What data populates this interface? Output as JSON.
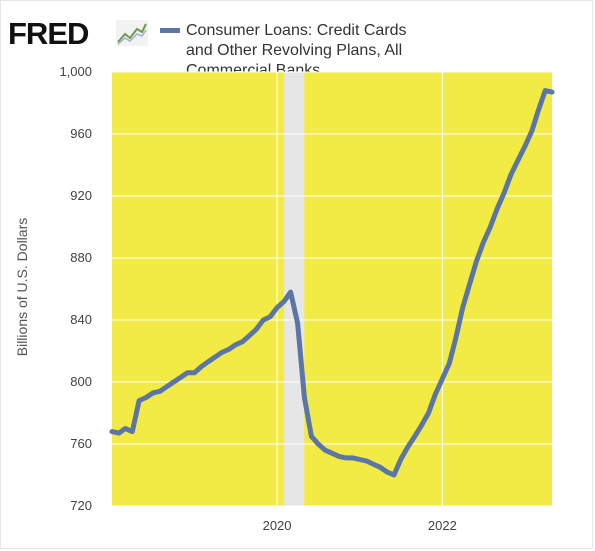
{
  "brand": {
    "logo_text": "FRED",
    "logo_icon": "trend-line-icon"
  },
  "colors": {
    "plot_background": "#f2eb45",
    "line": "#5b76a6",
    "recession_band": "#e6e6e6",
    "grid": "#ffffff"
  },
  "chart_data": {
    "type": "line",
    "title": "",
    "ylabel": "Billions of U.S. Dollars",
    "xlabel": "",
    "ylim": [
      720,
      1000
    ],
    "xlim": [
      "2018-01-01",
      "2023-05-01"
    ],
    "y_ticks": [
      720,
      760,
      800,
      840,
      880,
      920,
      960,
      1000
    ],
    "y_tick_labels": [
      "720",
      "760",
      "800",
      "840",
      "880",
      "920",
      "960",
      "1,000"
    ],
    "x_ticks": [
      "2020-01-01",
      "2022-01-01"
    ],
    "x_tick_labels": [
      "2020",
      "2022"
    ],
    "grid": true,
    "legend_position": "top",
    "shaded_periods": [
      {
        "start": "2020-02-01",
        "end": "2020-04-30"
      }
    ],
    "series": [
      {
        "name": "Consumer Loans: Credit Cards and Other Revolving Plans, All Commercial Banks",
        "x": [
          "2018-01-01",
          "2018-02-01",
          "2018-03-01",
          "2018-04-01",
          "2018-05-01",
          "2018-06-01",
          "2018-07-01",
          "2018-08-01",
          "2018-09-01",
          "2018-10-01",
          "2018-11-01",
          "2018-12-01",
          "2019-01-01",
          "2019-02-01",
          "2019-03-01",
          "2019-04-01",
          "2019-05-01",
          "2019-06-01",
          "2019-07-01",
          "2019-08-01",
          "2019-09-01",
          "2019-10-01",
          "2019-11-01",
          "2019-12-01",
          "2020-01-01",
          "2020-02-01",
          "2020-03-01",
          "2020-04-01",
          "2020-05-01",
          "2020-06-01",
          "2020-07-01",
          "2020-08-01",
          "2020-09-01",
          "2020-10-01",
          "2020-11-01",
          "2020-12-01",
          "2021-01-01",
          "2021-02-01",
          "2021-03-01",
          "2021-04-01",
          "2021-05-01",
          "2021-06-01",
          "2021-07-01",
          "2021-08-01",
          "2021-09-01",
          "2021-10-01",
          "2021-11-01",
          "2021-12-01",
          "2022-01-01",
          "2022-02-01",
          "2022-03-01",
          "2022-04-01",
          "2022-05-01",
          "2022-06-01",
          "2022-07-01",
          "2022-08-01",
          "2022-09-01",
          "2022-10-01",
          "2022-11-01",
          "2022-12-01",
          "2023-01-01",
          "2023-02-01",
          "2023-03-01",
          "2023-04-01",
          "2023-05-01"
        ],
        "values": [
          768,
          767,
          770,
          768,
          788,
          790,
          793,
          794,
          797,
          800,
          803,
          806,
          806,
          810,
          813,
          816,
          819,
          821,
          824,
          826,
          830,
          834,
          840,
          842,
          848,
          852,
          858,
          838,
          790,
          765,
          760,
          756,
          754,
          752,
          751,
          751,
          750,
          749,
          747,
          745,
          742,
          740,
          750,
          758,
          765,
          772,
          780,
          792,
          802,
          812,
          828,
          848,
          863,
          878,
          890,
          900,
          912,
          922,
          934,
          943,
          952,
          962,
          975,
          988,
          987
        ]
      }
    ]
  }
}
